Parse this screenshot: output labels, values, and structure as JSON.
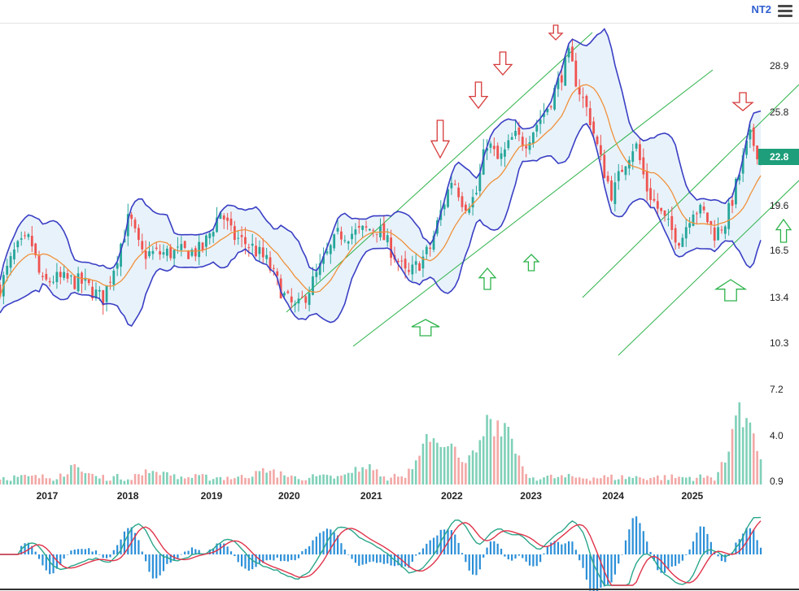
{
  "header": {
    "symbol": "NT2",
    "menu_icon": "hamburger-menu-icon"
  },
  "colors": {
    "up": "#26a69a",
    "down": "#ef5350",
    "bollinger": "#3a3fc4",
    "bollinger_fill": "#e8f2fb",
    "mid_band": "#f0913a",
    "channel": "#2db34a",
    "arrow_down": "#d63a3a",
    "arrow_up": "#2db34a",
    "price_tag": "#1e9e7a",
    "macd_line": "#2aa68a",
    "signal_line": "#e0334a",
    "histogram": "#2b8fd8"
  },
  "chart_data": {
    "type": "candlestick",
    "price_axis": {
      "ticks": [
        "28.9",
        "25.8",
        "22.8",
        "19.6",
        "16.5",
        "13.4",
        "10.3",
        "7.2",
        "4.0",
        "0.9"
      ],
      "current_price": "22.8"
    },
    "x_axis": {
      "years": [
        "2017",
        "2018",
        "2019",
        "2020",
        "2021",
        "2022",
        "2023",
        "2024",
        "2025"
      ]
    },
    "overlays": [
      "bollinger-upper",
      "bollinger-middle",
      "bollinger-lower",
      "trend-channels"
    ],
    "panels": [
      "price",
      "volume",
      "macd"
    ],
    "grid": false
  }
}
